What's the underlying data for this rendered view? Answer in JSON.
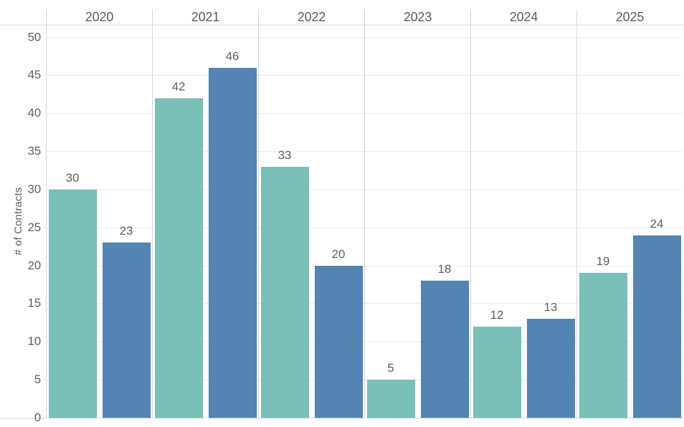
{
  "chart_data": {
    "type": "bar",
    "title": "",
    "categories": [
      "2020",
      "2021",
      "2022",
      "2023",
      "2024",
      "2025"
    ],
    "series": [
      {
        "name": "teal",
        "color": "#7bbfb6",
        "values": [
          30,
          42,
          33,
          5,
          12,
          19
        ]
      },
      {
        "name": "blue",
        "color": "#5484b1",
        "values": [
          23,
          46,
          20,
          18,
          13,
          24
        ]
      }
    ],
    "xlabel": "",
    "ylabel": "# of Contracts",
    "ylim": [
      0,
      50
    ],
    "yticks": [
      0,
      5,
      10,
      15,
      20,
      25,
      30,
      35,
      40,
      45,
      50
    ],
    "grid": true,
    "legend_position": "none",
    "bar_value_labels": true
  },
  "colors": {
    "bar_teal": "#7bbfb6",
    "bar_blue": "#5484b1",
    "axis_text": "#5e5e5e",
    "header_text": "#5b5b5b",
    "gridline": "#edebe8",
    "divider": "#d6d6d6",
    "background": "#ffffff"
  }
}
